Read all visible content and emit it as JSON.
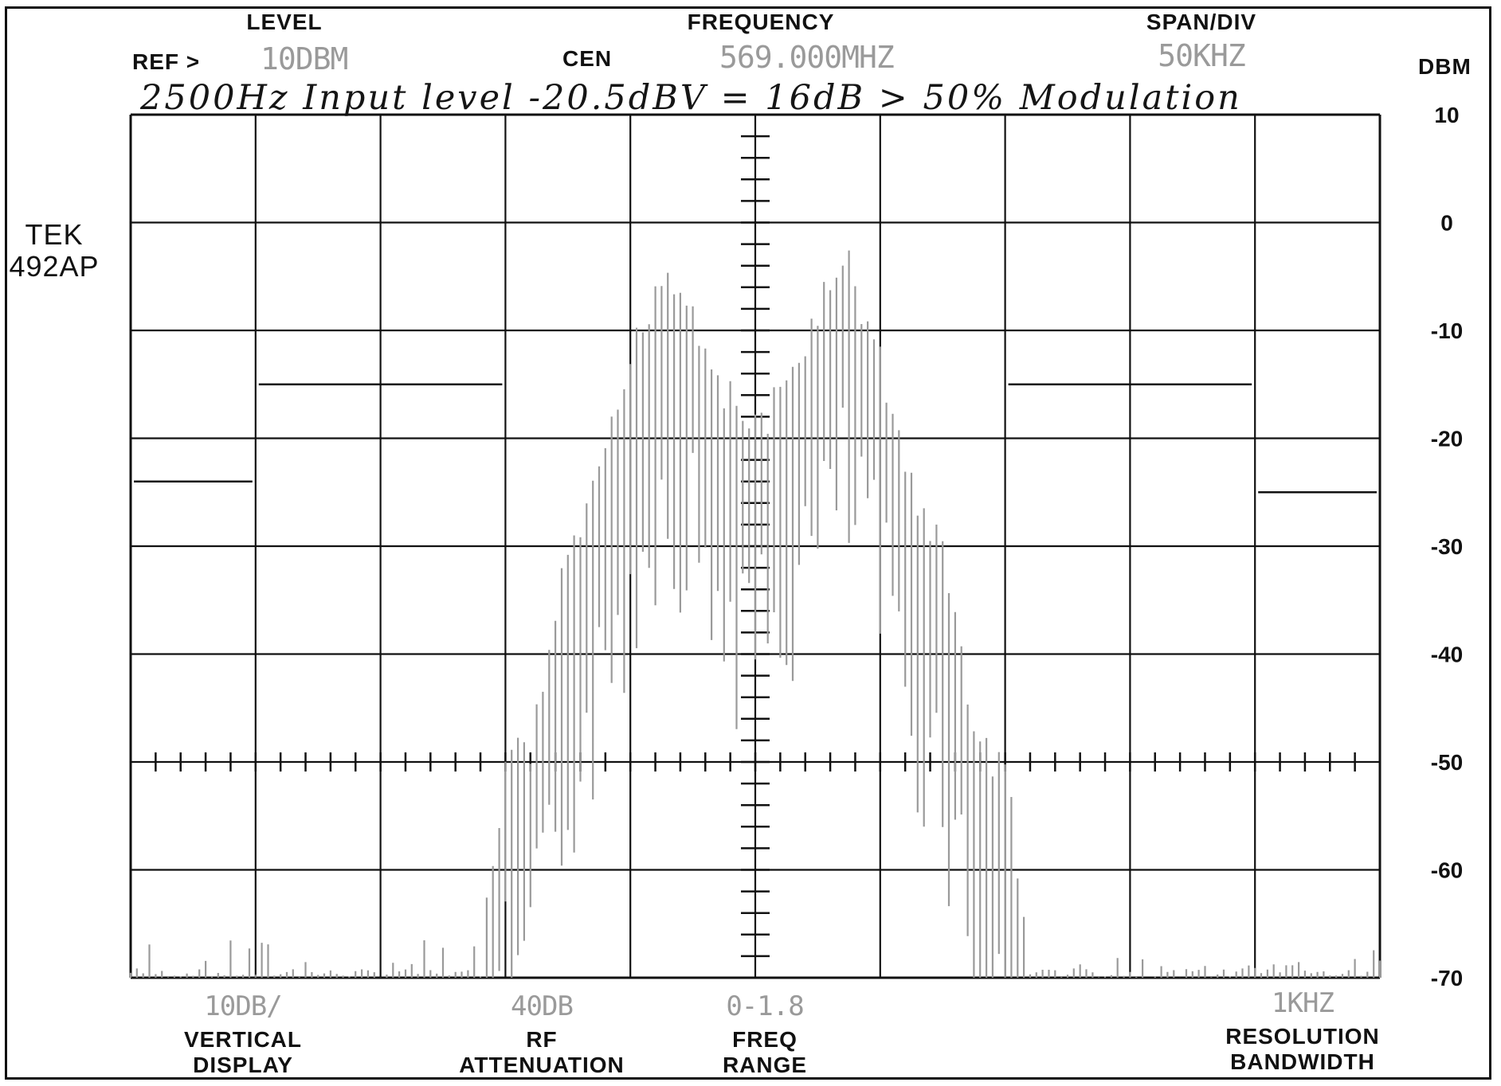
{
  "instrument": {
    "model_line1": "TEK",
    "model_line2": "492AP"
  },
  "header": {
    "level_label": "LEVEL",
    "ref_label": "REF >",
    "ref_value": "10DBM",
    "frequency_label": "FREQUENCY",
    "cen_label": "CEN",
    "cen_value": "569.000MHZ",
    "span_label": "SPAN/DIV",
    "span_value": "50KHZ",
    "unit_label": "DBM"
  },
  "annotation": "2500Hz Input level -20.5dBV = 16dB > 50% Modulation",
  "footer": {
    "vertical_value": "10DB/",
    "vertical_label1": "VERTICAL",
    "vertical_label2": "DISPLAY",
    "rf_value": "40DB",
    "rf_label1": "RF",
    "rf_label2": "ATTENUATION",
    "freq_value": "0-1.8",
    "freq_label1": "FREQ",
    "freq_label2": "RANGE",
    "rbw_value": "1KHZ",
    "rbw_label1": "RESOLUTION",
    "rbw_label2": "BANDWIDTH"
  },
  "colors": {
    "trace": "#9a9a9a",
    "grid": "#111111",
    "readout": "#9a9a9a"
  },
  "chart_data": {
    "type": "line",
    "title": "",
    "xlabel": "",
    "ylabel": "DBM",
    "center_frequency": "569.000MHZ",
    "span_per_div_khz": 50,
    "xlim_khz": [
      -250,
      250
    ],
    "ylim": [
      -70,
      10
    ],
    "ytick_labels": [
      "10",
      "0",
      "-10",
      "-20",
      "-30",
      "-40",
      "-50",
      "-60",
      "-70"
    ],
    "grid": true,
    "series": [
      {
        "x": [
          -250,
          -225,
          -200,
          -175,
          -150,
          -125,
          -110,
          -100,
          -90,
          -75,
          -62,
          -50,
          -37,
          -25,
          -12,
          0,
          12,
          25,
          37,
          50,
          62,
          75,
          90,
          100,
          110,
          125,
          150,
          175,
          200,
          225,
          250
        ],
        "y": [
          -70,
          -70,
          -70,
          -70,
          -70,
          -69,
          -67,
          -48,
          -47,
          -29,
          -22,
          -11,
          -2,
          -6,
          -14,
          -17,
          -14,
          -6,
          -2,
          -11,
          -22,
          -29,
          -47,
          -48,
          -67,
          -69,
          -70,
          -70,
          -70,
          -70,
          -70
        ]
      }
    ],
    "level_markers": [
      {
        "x": [
          -250,
          -200
        ],
        "y": -24
      },
      {
        "x": [
          -200,
          -100
        ],
        "y": -15
      },
      {
        "x": [
          100,
          200
        ],
        "y": -15
      },
      {
        "x": [
          200,
          250
        ],
        "y": -25
      }
    ]
  }
}
